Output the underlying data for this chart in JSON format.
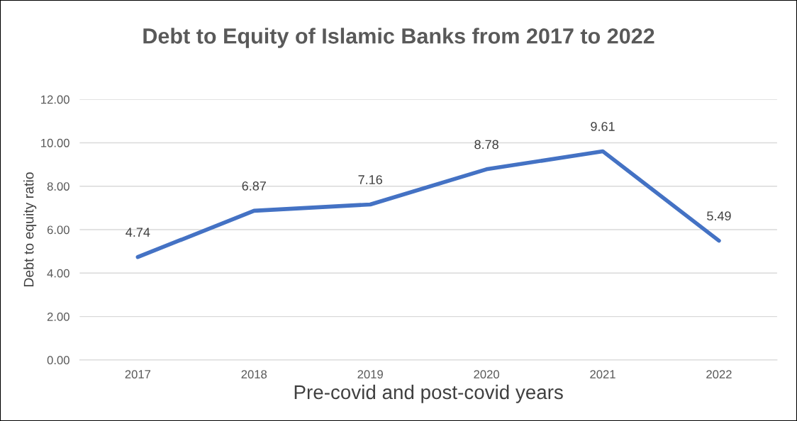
{
  "chart_data": {
    "type": "line",
    "title": "Debt to Equity of Islamic Banks from 2017 to 2022",
    "xlabel": "Pre-covid and post-covid years",
    "ylabel": "Debt to equity ratio",
    "categories": [
      "2017",
      "2018",
      "2019",
      "2020",
      "2021",
      "2022"
    ],
    "series": [
      {
        "color": "#4472c4",
        "values": [
          4.74,
          6.87,
          7.16,
          8.78,
          9.61,
          5.49
        ]
      }
    ],
    "ylim": [
      0,
      12
    ],
    "yticks": [
      {
        "value": 0,
        "label": "0.00"
      },
      {
        "value": 2,
        "label": "2.00"
      },
      {
        "value": 4,
        "label": "4.00"
      },
      {
        "value": 6,
        "label": "6.00"
      },
      {
        "value": 8,
        "label": "8.00"
      },
      {
        "value": 10,
        "label": "10.00"
      },
      {
        "value": 12,
        "label": "12.00"
      }
    ],
    "grid": "y",
    "data_labels": true,
    "marker": "none",
    "line_style": "solid"
  }
}
